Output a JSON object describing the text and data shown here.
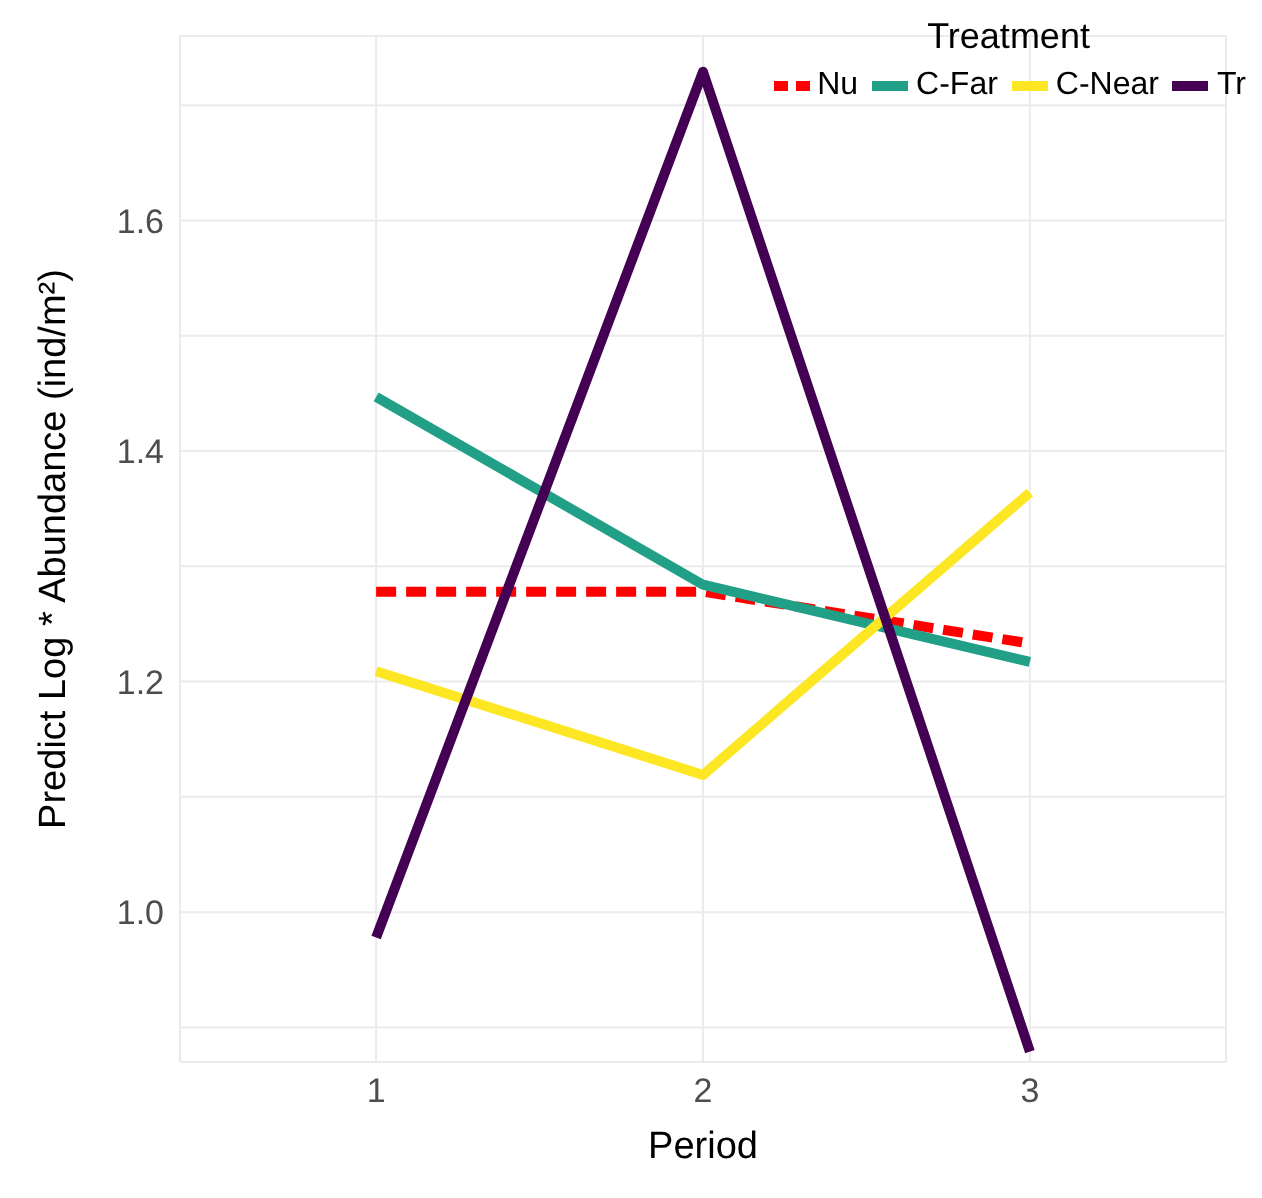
{
  "chart_data": {
    "type": "line",
    "xlabel": "Period",
    "ylabel": "Predict Log * Abundance (ind/m²)",
    "legend_title": "Treatment",
    "legend": "top right",
    "grid": true,
    "marker": "none",
    "line_style": "solid",
    "x": [
      1,
      2,
      3
    ],
    "xlim": [
      0.4,
      3.6
    ],
    "xticks": [
      1,
      2,
      3
    ],
    "ylim": [
      0.87,
      1.76
    ],
    "yticks": [
      {
        "value": 0.9,
        "label": null
      },
      {
        "value": 1.0,
        "label": "1.0"
      },
      {
        "value": 1.1,
        "label": null
      },
      {
        "value": 1.2,
        "label": "1.2"
      },
      {
        "value": 1.3,
        "label": null
      },
      {
        "value": 1.4,
        "label": "1.4"
      },
      {
        "value": 1.5,
        "label": null
      },
      {
        "value": 1.6,
        "label": "1.6"
      },
      {
        "value": 1.7,
        "label": null
      }
    ],
    "series": [
      {
        "name": "Nu",
        "color": "#ff0000",
        "line_style": "dashed",
        "values": [
          1.278,
          1.278,
          1.233
        ]
      },
      {
        "name": "C-Far",
        "color": "#21a087",
        "values": [
          1.447,
          1.284,
          1.217
        ]
      },
      {
        "name": "C-Near",
        "color": "#fde725",
        "values": [
          1.209,
          1.119,
          1.364
        ]
      },
      {
        "name": "Tr",
        "color": "#440154",
        "values": [
          0.978,
          1.729,
          0.879
        ]
      }
    ]
  }
}
